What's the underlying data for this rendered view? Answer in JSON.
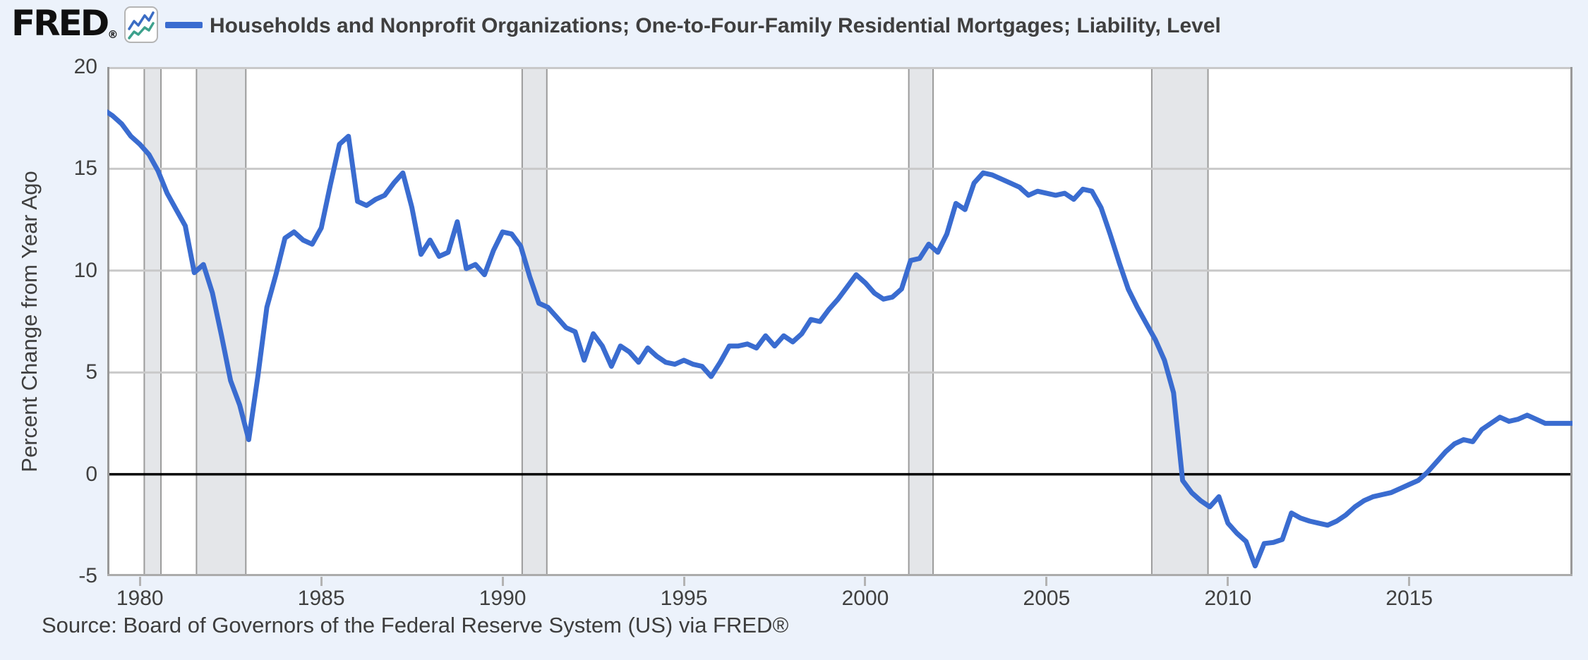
{
  "header": {
    "logo_text": "FRED",
    "registered_mark": "®",
    "legend_label": "Households and Nonprofit Organizations; One-to-Four-Family Residential Mortgages; Liability, Level"
  },
  "footer": {
    "source_text": "Source: Board of Governors of the Federal Reserve System (US) via FRED®"
  },
  "colors": {
    "page_bg": "#ecf2fb",
    "plot_bg": "#ffffff",
    "line": "#3a6cd0",
    "grid": "#c9c9c9",
    "frame_top": "#c9c9c9",
    "frame_side": "#999999",
    "frame_bottom": "#ababab",
    "zero_line": "#000000",
    "recession_fill": "#e4e6e9",
    "recession_edge": "#9b9b9b",
    "tick_text": "#404040",
    "logo_icon_blue": "#3b6cc4",
    "logo_icon_teal": "#3da18c"
  },
  "chart_data": {
    "type": "line",
    "title": "Households and Nonprofit Organizations; One-to-Four-Family Residential Mortgages; Liability, Level",
    "xlabel": "",
    "ylabel": "Percent Change from Year Ago",
    "legend_position": "top-left",
    "grid": true,
    "frequency": "Quarterly",
    "xlim": [
      1979.1,
      2019.5
    ],
    "ylim": [
      -5,
      20
    ],
    "y_ticks": [
      20,
      15,
      10,
      5,
      0,
      -5
    ],
    "x_ticks": [
      1980,
      1985,
      1990,
      1995,
      2000,
      2005,
      2010,
      2015
    ],
    "gridlines_y": [
      15,
      10,
      5
    ],
    "zero_line": 0,
    "recessions": [
      [
        1980.12,
        1980.58
      ],
      [
        1981.56,
        1982.92
      ],
      [
        1990.54,
        1991.22
      ],
      [
        2001.2,
        2001.87
      ],
      [
        2007.9,
        2009.45
      ]
    ],
    "x_start": 1979.0,
    "x_step": 0.25,
    "values": [
      17.9,
      17.6,
      17.2,
      16.6,
      16.2,
      15.7,
      14.9,
      13.8,
      13.0,
      12.2,
      9.9,
      10.3,
      8.9,
      6.8,
      4.6,
      3.4,
      1.7,
      4.8,
      8.2,
      9.8,
      11.6,
      11.9,
      11.5,
      11.3,
      12.1,
      14.2,
      16.2,
      16.6,
      13.4,
      13.2,
      13.5,
      13.7,
      14.3,
      14.8,
      13.1,
      10.8,
      11.5,
      10.7,
      10.9,
      12.4,
      10.1,
      10.3,
      9.8,
      11.0,
      11.9,
      11.8,
      11.2,
      9.7,
      8.4,
      8.2,
      7.7,
      7.2,
      7.0,
      5.6,
      6.9,
      6.3,
      5.3,
      6.3,
      6.0,
      5.5,
      6.2,
      5.8,
      5.5,
      5.4,
      5.6,
      5.4,
      5.3,
      4.8,
      5.5,
      6.3,
      6.3,
      6.4,
      6.2,
      6.8,
      6.3,
      6.8,
      6.5,
      6.9,
      7.6,
      7.5,
      8.1,
      8.6,
      9.2,
      9.8,
      9.4,
      8.9,
      8.6,
      8.7,
      9.1,
      10.5,
      10.6,
      11.3,
      10.9,
      11.8,
      13.3,
      13.0,
      14.3,
      14.8,
      14.7,
      14.5,
      14.3,
      14.1,
      13.7,
      13.9,
      13.8,
      13.7,
      13.8,
      13.5,
      14.0,
      13.9,
      13.1,
      11.8,
      10.4,
      9.1,
      8.2,
      7.4,
      6.6,
      5.6,
      4.0,
      -0.3,
      -0.9,
      -1.3,
      -1.6,
      -1.1,
      -2.4,
      -2.9,
      -3.3,
      -4.5,
      -3.4,
      -3.35,
      -3.2,
      -1.9,
      -2.15,
      -2.3,
      -2.4,
      -2.5,
      -2.3,
      -2.0,
      -1.6,
      -1.3,
      -1.1,
      -1.0,
      -0.9,
      -0.7,
      -0.5,
      -0.3,
      0.1,
      0.6,
      1.1,
      1.5,
      1.7,
      1.6,
      2.2,
      2.5,
      2.8,
      2.6,
      2.7,
      2.9,
      2.7,
      2.5,
      2.5,
      2.5,
      2.5
    ]
  }
}
